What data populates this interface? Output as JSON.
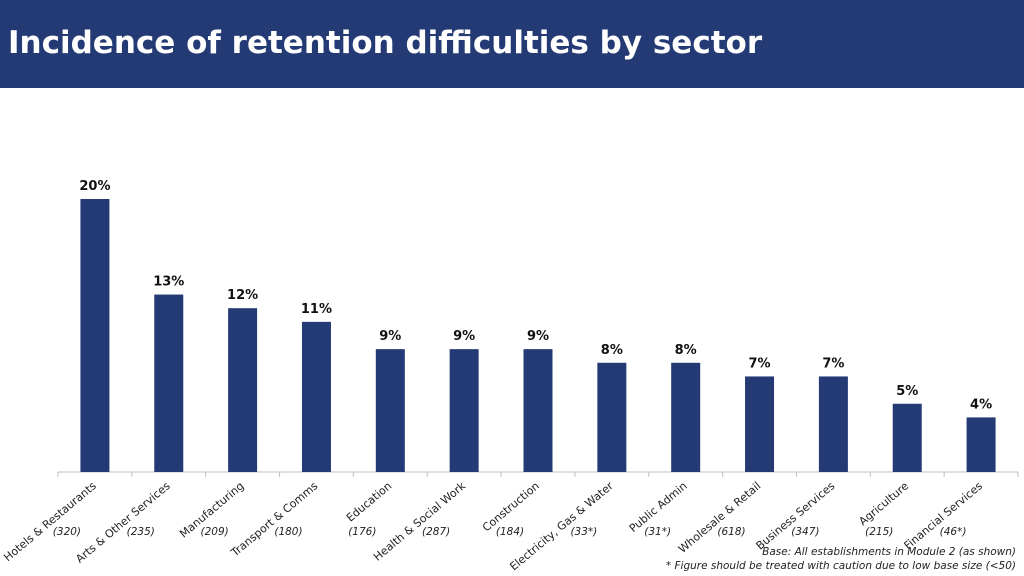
{
  "header": {
    "title": "Incidence of retention difficulties by sector"
  },
  "colors": {
    "header_bg": "#233a74",
    "bar": "#233a74"
  },
  "footnotes": {
    "base": "Base: All establishments in Module 2 (as shown)",
    "caution": "* Figure should be treated with caution due to low base size (<50)"
  },
  "chart_data": {
    "type": "bar",
    "title": "",
    "xlabel": "",
    "ylabel": "",
    "ylim": [
      0,
      20
    ],
    "grid": false,
    "categories": [
      "Hotels & Restaurants",
      "Arts & Other Services",
      "Manufacturing",
      "Transport & Comms",
      "Education",
      "Health & Social Work",
      "Construction",
      "Electricity, Gas & Water",
      "Public Admin",
      "Wholesale & Retail",
      "Business Services",
      "Agriculture",
      "Financial Services"
    ],
    "values": [
      20,
      13,
      12,
      11,
      9,
      9,
      9,
      8,
      8,
      7,
      7,
      5,
      4
    ],
    "value_labels": [
      "20%",
      "13%",
      "12%",
      "11%",
      "9%",
      "9%",
      "9%",
      "8%",
      "8%",
      "7%",
      "7%",
      "5%",
      "4%"
    ],
    "base_sizes": [
      "(320)",
      "(235)",
      "(209)",
      "(180)",
      "(176)",
      "(287)",
      "(184)",
      "(33*)",
      "(31*)",
      "(618)",
      "(347)",
      "(215)",
      "(46*)"
    ]
  }
}
